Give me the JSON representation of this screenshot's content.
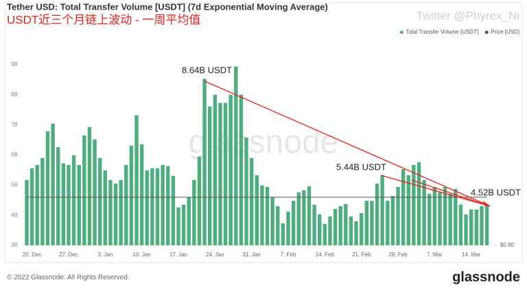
{
  "chart_data": {
    "type": "bar",
    "title": "Tether USD: Total Transfer Volume [USDT] (7d Exponential Moving Average)",
    "subtitle": "USDT近三个月链上波动 - 一周平均值",
    "watermark": "Twitter @Phyrex_Ni",
    "logo_watermark": "glassnode",
    "footer": "© 2022 Glassnode. All Rights Reserved.",
    "brand": "glassnode",
    "annotations": [
      "8.64B USDT",
      "5.44B USDT",
      "4.52B USDT"
    ],
    "categories": [
      null,
      "20. Dec",
      null,
      null,
      null,
      null,
      null,
      null,
      "27. Dec",
      null,
      null,
      null,
      null,
      null,
      null,
      "3. Jan",
      null,
      null,
      null,
      null,
      null,
      null,
      "10. Jan",
      null,
      null,
      null,
      null,
      null,
      null,
      "17. Jan",
      null,
      null,
      null,
      null,
      null,
      null,
      "24. Jan",
      null,
      null,
      null,
      null,
      null,
      null,
      "31. Jan",
      null,
      null,
      null,
      null,
      null,
      null,
      "7. Feb",
      null,
      null,
      null,
      null,
      null,
      null,
      "14. Feb",
      null,
      null,
      null,
      null,
      null,
      null,
      "21. Feb",
      null,
      null,
      null,
      null,
      null,
      null,
      "28. Feb",
      null,
      null,
      null,
      null,
      null,
      null,
      "7. Mar",
      null,
      null,
      null,
      null,
      null,
      null,
      "14. Mar",
      null,
      null,
      null
    ],
    "series": [
      {
        "name": "Total Transfer Volume [USDT]",
        "color": "#4fae80",
        "values": [
          5.17,
          5.56,
          5.67,
          5.9,
          6.79,
          7.04,
          6.26,
          5.72,
          5.67,
          5.99,
          5.67,
          6.65,
          6.93,
          6.52,
          5.9,
          5.49,
          5.17,
          5.05,
          5.17,
          5.67,
          6.31,
          7.32,
          6.36,
          5.49,
          5.56,
          5.56,
          5.67,
          5.63,
          5.31,
          4.26,
          4.35,
          4.6,
          5.17,
          5.95,
          8.53,
          7.61,
          8.0,
          7.73,
          7.73,
          8.0,
          8.94,
          8.0,
          6.58,
          5.9,
          5.33,
          4.99,
          4.94,
          4.6,
          4.3,
          3.73,
          4.12,
          4.48,
          4.76,
          4.83,
          4.96,
          4.35,
          4.03,
          3.71,
          3.96,
          4.21,
          4.3,
          4.37,
          3.96,
          3.8,
          4.07,
          4.48,
          4.48,
          5.05,
          5.33,
          4.48,
          4.64,
          4.94,
          5.53,
          5.33,
          5.67,
          5.76,
          5.17,
          4.71,
          4.94,
          4.76,
          4.94,
          4.71,
          4.87,
          4.35,
          4.03,
          4.19,
          4.19,
          4.3,
          4.35
        ]
      },
      {
        "name": "Price [USD]",
        "color": "#555555",
        "axis": "y2",
        "values": [
          1,
          1,
          1,
          1,
          1,
          1,
          1,
          1,
          1,
          1,
          1,
          1,
          1,
          1,
          1,
          1,
          1,
          1,
          1,
          1,
          1,
          1,
          1,
          1,
          1,
          1,
          1,
          1,
          1,
          1,
          1,
          1,
          1,
          1,
          1,
          1,
          1,
          1,
          1,
          1,
          1,
          1,
          1,
          1,
          1,
          1,
          1,
          1,
          1,
          1,
          1,
          1,
          1,
          1,
          1,
          1,
          1,
          1,
          1,
          1,
          1,
          1,
          1,
          1,
          1,
          1,
          1,
          1,
          1,
          1,
          1,
          1,
          1,
          1,
          1,
          1,
          1,
          1,
          1,
          1,
          1,
          1,
          1,
          1,
          1,
          1,
          1,
          1,
          1
        ]
      }
    ],
    "ylim": [
      3,
      9.55
    ],
    "yticks": [
      {
        "value": 3,
        "label": "3B"
      },
      {
        "value": 4,
        "label": "4B"
      },
      {
        "value": 5,
        "label": "5B"
      },
      {
        "value": 6,
        "label": "6B"
      },
      {
        "value": 7,
        "label": "7B"
      },
      {
        "value": 8,
        "label": "8B"
      },
      {
        "value": 9,
        "label": "9B"
      }
    ],
    "y2lim": [
      0.8,
      1.62
    ],
    "y2ticks": [
      {
        "value": 0.8,
        "label": "$0.80"
      }
    ],
    "grid": false,
    "legend": "top-right"
  }
}
